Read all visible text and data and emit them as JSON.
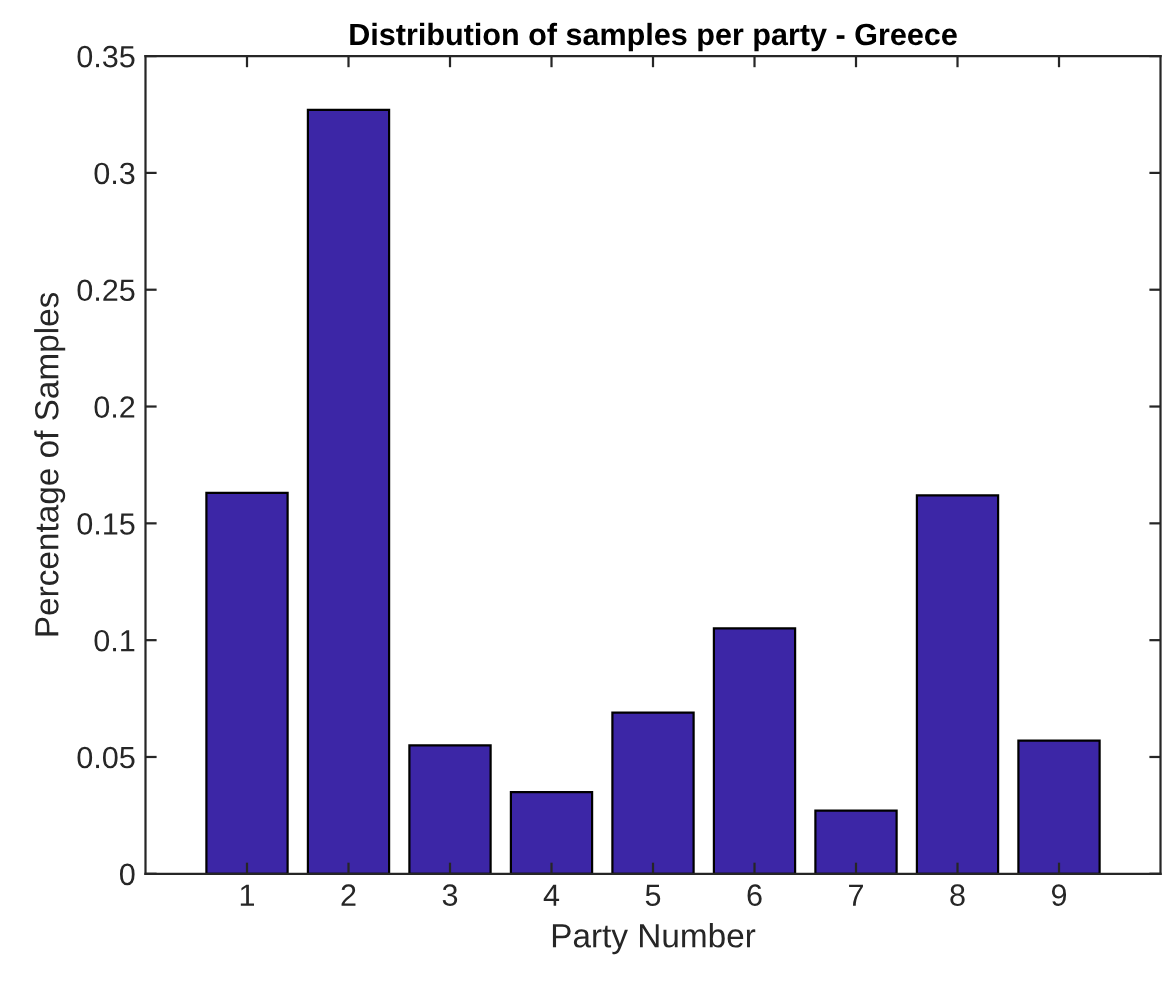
{
  "chart_data": {
    "type": "bar",
    "title": "Distribution of samples per party - Greece",
    "xlabel": "Party Number",
    "ylabel": "Percentage of Samples",
    "x": [
      1,
      2,
      3,
      4,
      5,
      6,
      7,
      8,
      9
    ],
    "values": [
      0.163,
      0.327,
      0.055,
      0.035,
      0.069,
      0.105,
      0.027,
      0.162,
      0.057
    ],
    "color": "#3c26a6",
    "xlim": [
      0,
      10
    ],
    "xticks": [
      1,
      2,
      3,
      4,
      5,
      6,
      7,
      8,
      9
    ],
    "ylim": [
      0,
      0.35
    ],
    "yticks": [
      0,
      0.05,
      0.1,
      0.15,
      0.2,
      0.25,
      0.3,
      0.35
    ],
    "grid": false,
    "legend": false
  }
}
